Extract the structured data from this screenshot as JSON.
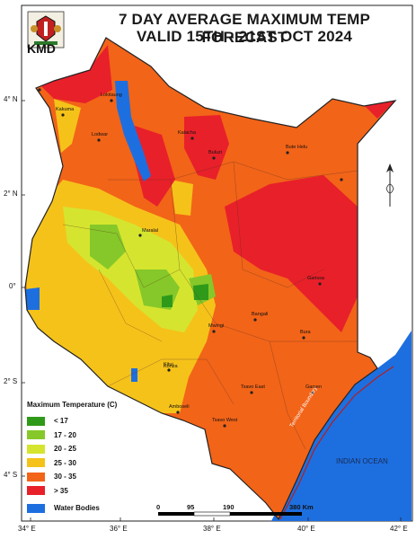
{
  "title": {
    "line1": "7 DAY AVERAGE MAXIMUM TEMP FORECAST",
    "line2": "VALID 15TH - 21ST OCT  2024"
  },
  "agency": "KMD",
  "legend": {
    "title": "Maximum Temperature (C)",
    "classes": [
      {
        "label": "< 17",
        "color": "#2f9a1a"
      },
      {
        "label": "17 - 20",
        "color": "#86c829"
      },
      {
        "label": "20 - 25",
        "color": "#d5e52f"
      },
      {
        "label": "25 - 30",
        "color": "#f5c21a"
      },
      {
        "label": "30 - 35",
        "color": "#f26418"
      },
      {
        "label": "> 35",
        "color": "#e8202a"
      }
    ],
    "water": {
      "label": "Water Bodies",
      "color": "#1d6fe0"
    }
  },
  "axes": {
    "lat": [
      "4° N",
      "2° N",
      "0°",
      "2° S",
      "4° S"
    ],
    "lon": [
      "34° E",
      "36° E",
      "38° E",
      "40° E",
      "42° E"
    ]
  },
  "scale": {
    "ticks": [
      "0",
      "95",
      "190",
      "380 Km"
    ]
  },
  "labels": {
    "ocean": "INDIAN OCEAN",
    "boundary": "Territorial Boundary"
  },
  "places": [
    {
      "name": "Lokitaung"
    },
    {
      "name": "Kakuma"
    },
    {
      "name": "Lodwar"
    },
    {
      "name": "Kalacha"
    },
    {
      "name": "Buluzi"
    },
    {
      "name": "Bute Helu"
    },
    {
      "name": "Maralal"
    },
    {
      "name": "Garissa"
    },
    {
      "name": "Bangali"
    },
    {
      "name": "Mwingi"
    },
    {
      "name": "Bura"
    },
    {
      "name": "Kitui"
    },
    {
      "name": "Konza"
    },
    {
      "name": "Tsavo East"
    },
    {
      "name": "Garsen"
    },
    {
      "name": "Amboseli"
    },
    {
      "name": "Tsavo West"
    }
  ]
}
